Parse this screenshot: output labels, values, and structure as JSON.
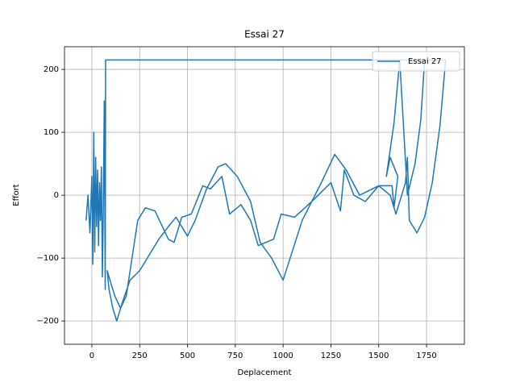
{
  "chart_data": {
    "type": "line",
    "title": "Essai 27",
    "x_label": "Deplacement",
    "y_label": "Effort",
    "x": [
      -30,
      -20,
      -10,
      0,
      5,
      10,
      15,
      20,
      25,
      30,
      35,
      40,
      45,
      50,
      55,
      60,
      65,
      70,
      72,
      1850,
      1820,
      1780,
      1740,
      1700,
      1660,
      1650,
      1640,
      1610,
      1590,
      1560,
      1500,
      1400,
      1330,
      1270,
      1200,
      1100,
      1000,
      940,
      880,
      830,
      760,
      700,
      660,
      600,
      540,
      500,
      440,
      400,
      350,
      300,
      250,
      200,
      160,
      130,
      110,
      90,
      80,
      120,
      150,
      180,
      240,
      280,
      330,
      400,
      430,
      470,
      520,
      580,
      620,
      680,
      720,
      780,
      830,
      870,
      950,
      990,
      1060,
      1150,
      1250,
      1300,
      1320,
      1370,
      1430,
      1500,
      1570,
      1580,
      1600,
      1560,
      1540,
      1580,
      1610,
      1650,
      1690,
      1720,
      1740
    ],
    "series": [
      {
        "name": "Essai 27",
        "color": "#1f77b4",
        "values": [
          -40,
          0,
          -60,
          30,
          -110,
          100,
          -90,
          60,
          -50,
          40,
          -80,
          20,
          -40,
          45,
          -130,
          -20,
          150,
          -150,
          215,
          215,
          110,
          20,
          -35,
          -60,
          -40,
          60,
          20,
          -10,
          -30,
          0,
          15,
          0,
          40,
          65,
          20,
          -40,
          -135,
          -100,
          -75,
          -10,
          30,
          50,
          45,
          10,
          -40,
          -65,
          -35,
          -50,
          -70,
          -95,
          -120,
          -135,
          -170,
          -200,
          -180,
          -150,
          -120,
          -160,
          -180,
          -160,
          -40,
          -20,
          -25,
          -70,
          -75,
          -35,
          -30,
          15,
          10,
          30,
          -30,
          -15,
          -40,
          -80,
          -70,
          -30,
          -35,
          -10,
          20,
          -25,
          40,
          0,
          -10,
          15,
          15,
          -20,
          30,
          60,
          30,
          115,
          215,
          0,
          50,
          120,
          215
        ]
      }
    ],
    "xlim": [
      -143,
      1948
    ],
    "ylim": [
      -237,
      236
    ],
    "xticks": [
      0,
      250,
      500,
      750,
      1000,
      1250,
      1500,
      1750
    ],
    "yticks": [
      {
        "value": -200,
        "label": "−200"
      },
      {
        "value": -100,
        "label": "−100"
      },
      0,
      100,
      200
    ],
    "grid": true,
    "legend": "upper right"
  }
}
